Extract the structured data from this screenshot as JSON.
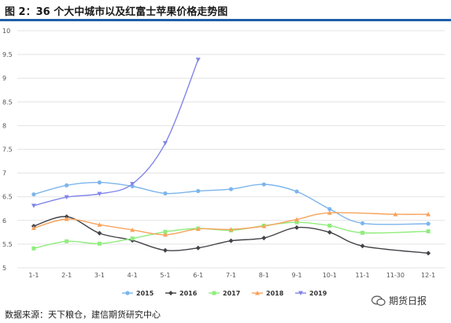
{
  "title": "图 2：36 个大中城市以及红富士苹果价格走势图",
  "source": "数据来源：天下粮仓，建信期货研究中心",
  "watermark": "期货日报",
  "colors": {
    "rule": "#1f5fa8",
    "grid": "#e3e3e3",
    "axis_text": "#555555"
  },
  "chart_data": {
    "type": "line",
    "categories": [
      "1-1",
      "2-1",
      "3-1",
      "4-1",
      "5-1",
      "6-1",
      "7-1",
      "8-1",
      "9-1",
      "10-1",
      "11-1",
      "11-30",
      "12-1"
    ],
    "xlabel": "",
    "ylabel": "",
    "ylim": [
      5,
      10
    ],
    "yticks": [
      5,
      5.5,
      6,
      6.5,
      7,
      7.5,
      8,
      8.5,
      9,
      9.5,
      10
    ],
    "grid": "horizontal",
    "legend_position": "bottom",
    "series": [
      {
        "name": "2015",
        "color": "#7cb5ec",
        "marker": "circle",
        "values": [
          6.55,
          6.74,
          6.8,
          6.72,
          6.57,
          6.62,
          6.66,
          6.76,
          6.61,
          6.24,
          5.94,
          null,
          5.93
        ]
      },
      {
        "name": "2016",
        "color": "#434348",
        "marker": "diamond",
        "values": [
          5.88,
          6.08,
          5.73,
          5.58,
          5.37,
          5.42,
          5.57,
          5.63,
          5.85,
          5.75,
          5.46,
          null,
          5.31
        ]
      },
      {
        "name": "2017",
        "color": "#90ed7d",
        "marker": "square",
        "values": [
          5.41,
          5.56,
          5.51,
          5.62,
          5.76,
          5.83,
          5.79,
          5.89,
          5.96,
          5.89,
          5.74,
          null,
          5.77
        ]
      },
      {
        "name": "2018",
        "color": "#f7a35c",
        "marker": "triangle",
        "values": [
          5.84,
          6.03,
          5.91,
          5.8,
          5.7,
          5.82,
          5.81,
          5.88,
          6.02,
          6.16,
          null,
          6.13,
          6.13
        ]
      },
      {
        "name": "2019",
        "color": "#8085e9",
        "marker": "triangle-down",
        "values": [
          6.31,
          6.49,
          6.56,
          6.77,
          7.63,
          9.39,
          null,
          null,
          null,
          null,
          null,
          null,
          null
        ]
      }
    ]
  }
}
